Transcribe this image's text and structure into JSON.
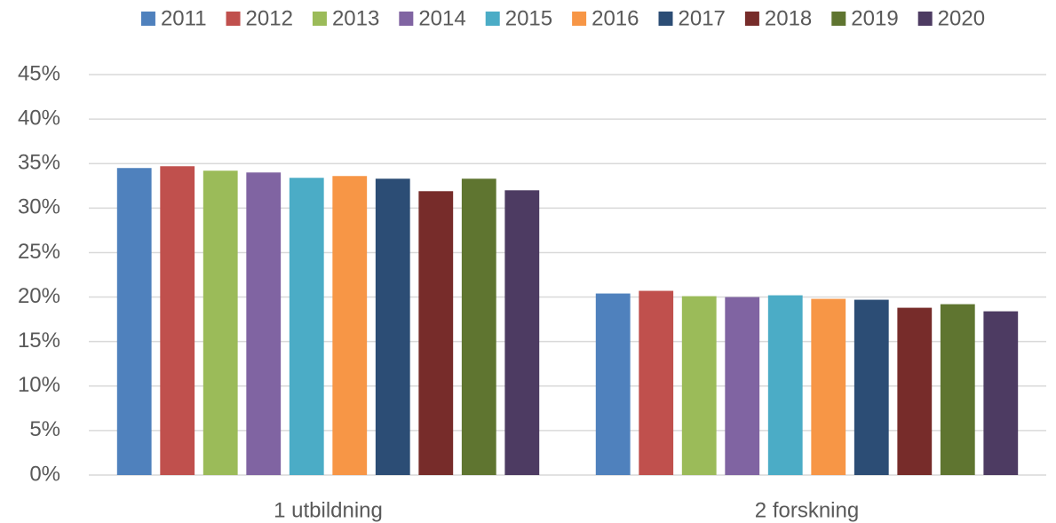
{
  "chart_data": {
    "type": "bar",
    "categories": [
      "1 utbildning",
      "2 forskning"
    ],
    "series": [
      {
        "name": "2011",
        "color": "#4f81bd",
        "values": [
          34.5,
          20.4
        ]
      },
      {
        "name": "2012",
        "color": "#c0504d",
        "values": [
          34.7,
          20.7
        ]
      },
      {
        "name": "2013",
        "color": "#9bbb59",
        "values": [
          34.2,
          20.1
        ]
      },
      {
        "name": "2014",
        "color": "#8064a2",
        "values": [
          34.0,
          20.0
        ]
      },
      {
        "name": "2015",
        "color": "#4bacc6",
        "values": [
          33.4,
          20.2
        ]
      },
      {
        "name": "2016",
        "color": "#f79646",
        "values": [
          33.6,
          19.8
        ]
      },
      {
        "name": "2017",
        "color": "#2c4d75",
        "values": [
          33.3,
          19.7
        ]
      },
      {
        "name": "2018",
        "color": "#772c2a",
        "values": [
          31.9,
          18.8
        ]
      },
      {
        "name": "2019",
        "color": "#5f7530",
        "values": [
          33.3,
          19.2
        ]
      },
      {
        "name": "2020",
        "color": "#4d3b62",
        "values": [
          32.0,
          18.4
        ]
      }
    ],
    "ylim": [
      0,
      45
    ],
    "yticks": [
      {
        "value": 0,
        "label": "0%"
      },
      {
        "value": 5,
        "label": "5%"
      },
      {
        "value": 10,
        "label": "10%"
      },
      {
        "value": 15,
        "label": "15%"
      },
      {
        "value": 20,
        "label": "20%"
      },
      {
        "value": 25,
        "label": "25%"
      },
      {
        "value": 30,
        "label": "30%"
      },
      {
        "value": 35,
        "label": "35%"
      },
      {
        "value": 40,
        "label": "40%"
      },
      {
        "value": 45,
        "label": "45%"
      }
    ],
    "grid": true,
    "legend": "top"
  }
}
